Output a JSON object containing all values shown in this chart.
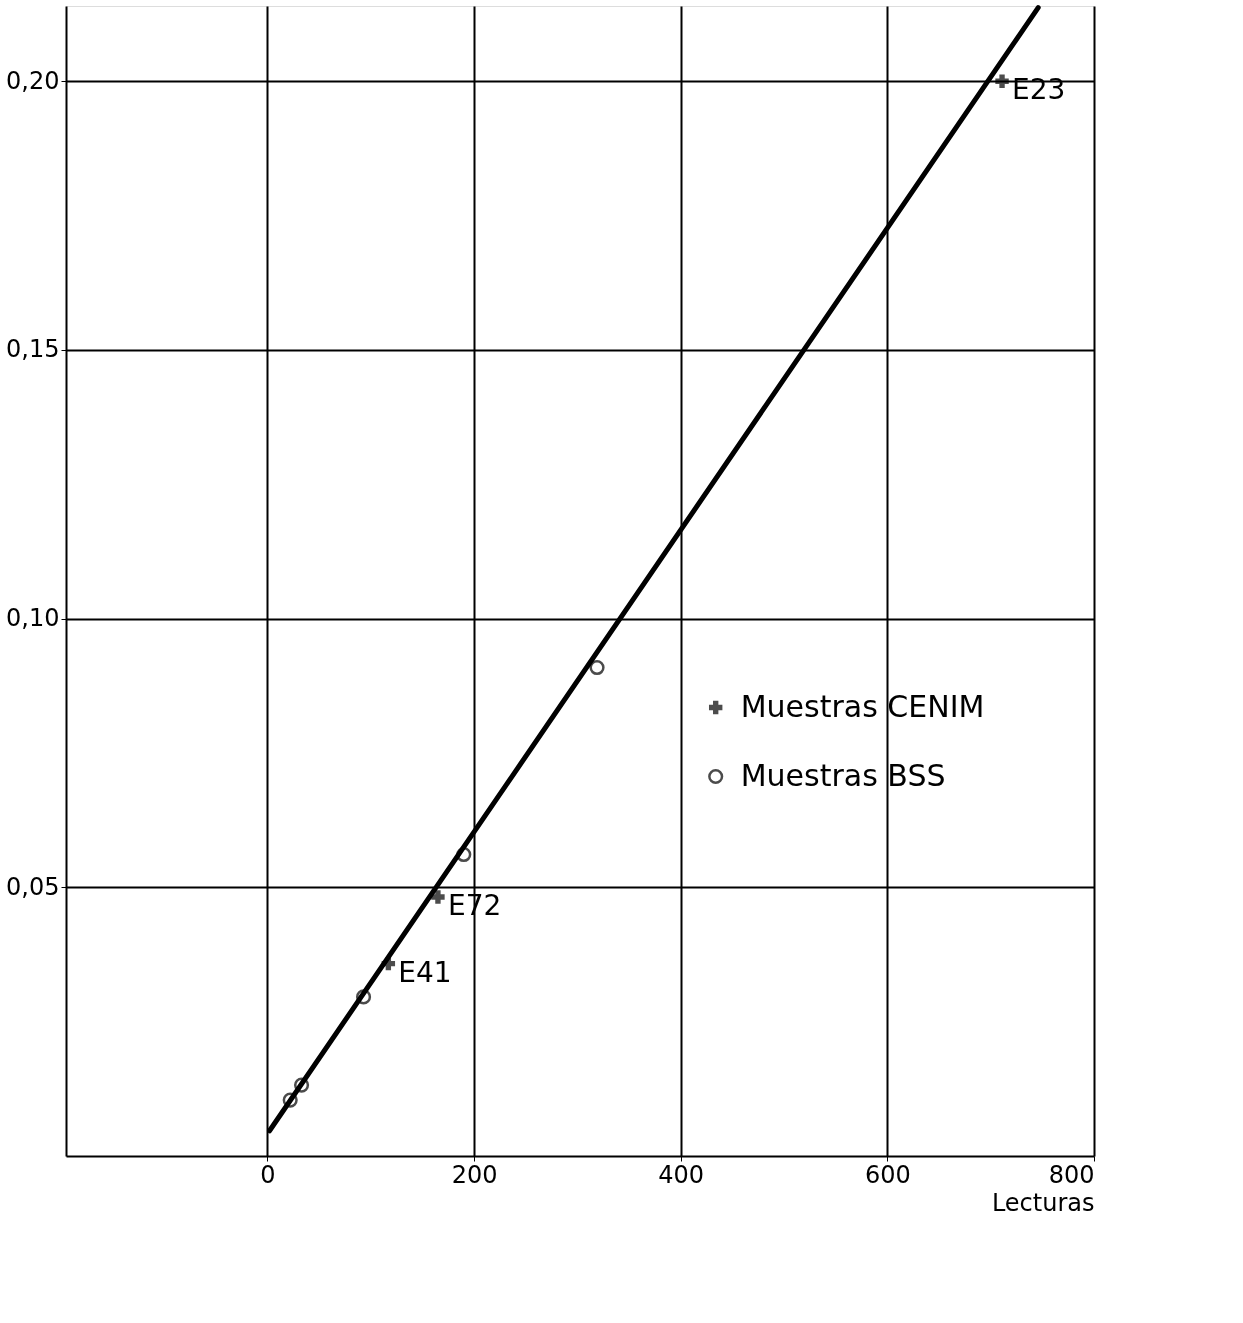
{
  "chart_data": {
    "type": "scatter",
    "xlabel": "Lecturas",
    "xlim": [
      -195,
      800
    ],
    "xticks": [
      0,
      200,
      400,
      600,
      800
    ],
    "ylim": [
      0,
      0.214
    ],
    "yticks": [
      {
        "value": 0.05,
        "label": "0,05"
      },
      {
        "value": 0.1,
        "label": "0,10"
      },
      {
        "value": 0.15,
        "label": "0,15"
      },
      {
        "value": 0.2,
        "label": "0,20"
      }
    ],
    "grid": true,
    "legend": "right",
    "series": [
      {
        "type": "line",
        "color": "#000000",
        "x": [
          2,
          746
        ],
        "values": [
          0.0047,
          0.2137
        ],
        "line_style": "solid"
      },
      {
        "name": "Muestras CENIM",
        "color": "#000000",
        "marker": "cross",
        "x": [
          117,
          165,
          711
        ],
        "values": [
          0.0358,
          0.0482,
          0.2
        ]
      },
      {
        "name": "Muestras BSS",
        "color": "#000000",
        "marker": "circle",
        "x": [
          22,
          33,
          93,
          190,
          319
        ],
        "values": [
          0.0104,
          0.0132,
          0.0296,
          0.0561,
          0.0909
        ]
      }
    ],
    "annotations": [
      {
        "text": "E41",
        "x": 117,
        "y": 0.0358
      },
      {
        "text": "E72",
        "x": 165,
        "y": 0.0482
      },
      {
        "text": "E23",
        "x": 711,
        "y": 0.2
      }
    ]
  }
}
